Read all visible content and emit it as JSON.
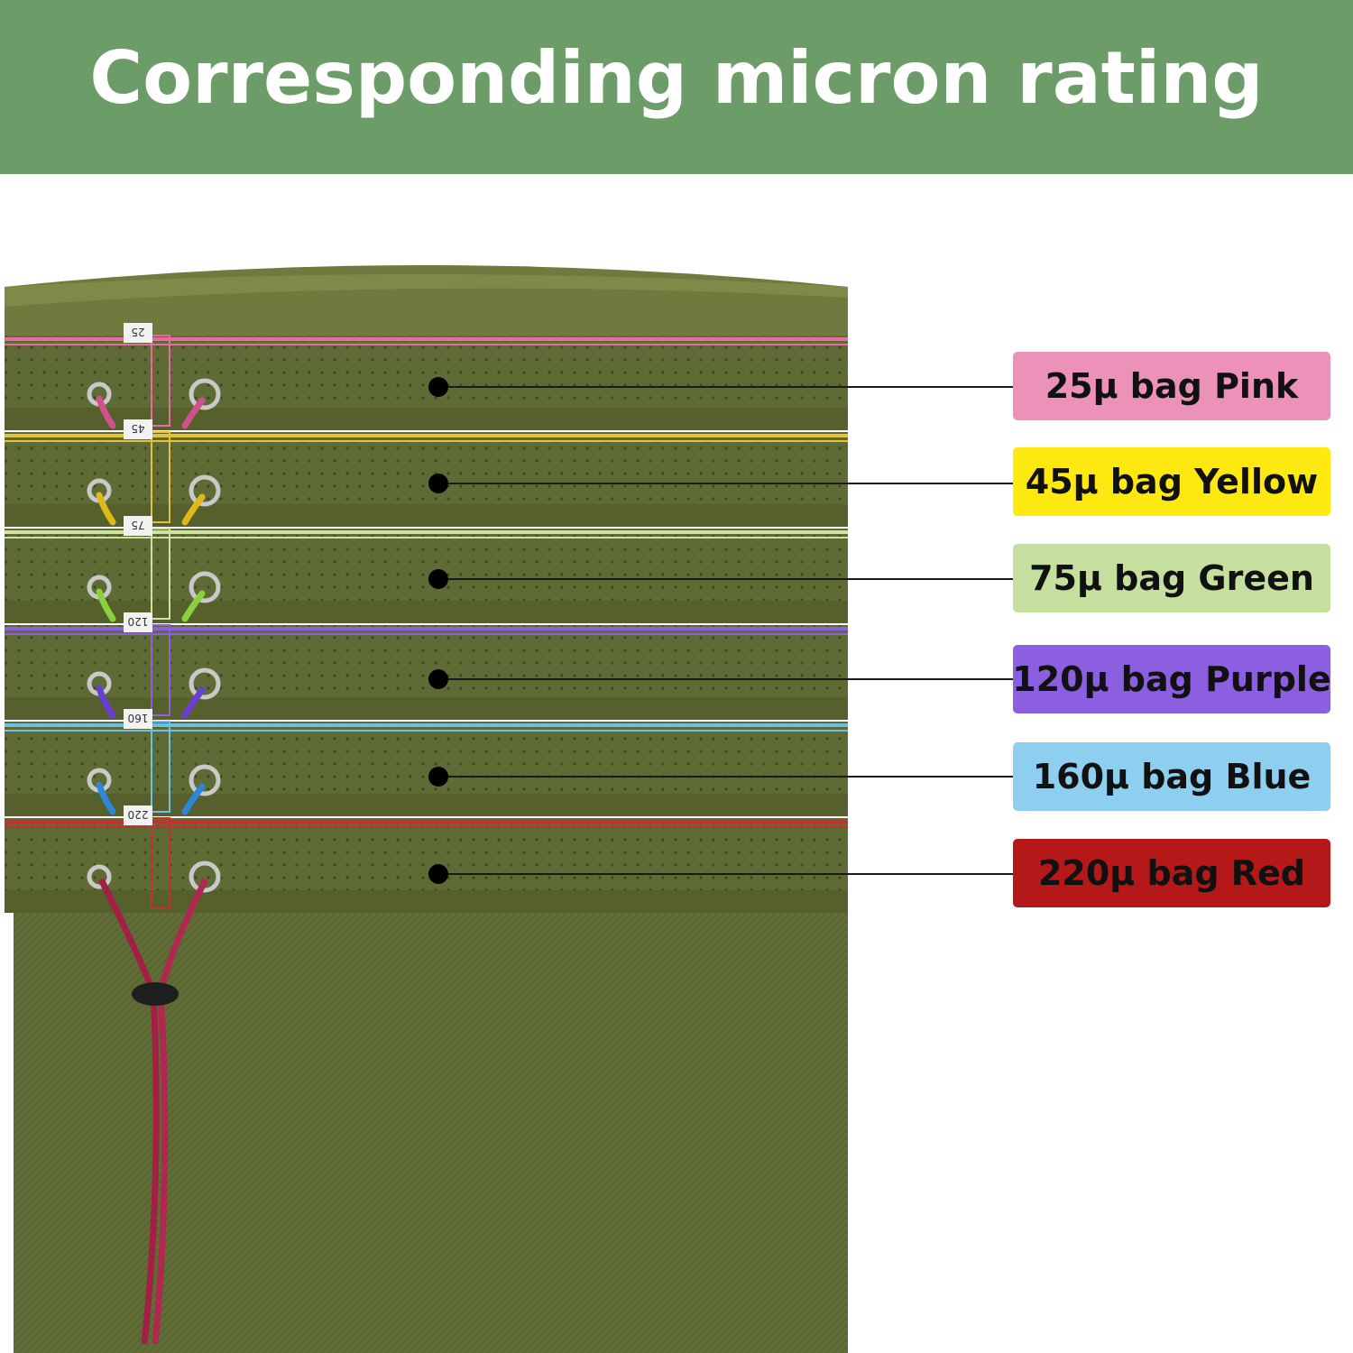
{
  "title": "Corresponding micron rating",
  "bags": [
    {
      "micron": "25",
      "label": "25µ bag Pink",
      "color": "#ec92b8",
      "thread": "#e86aa0",
      "rope": "#d0508c"
    },
    {
      "micron": "45",
      "label": "45µ bag Yellow",
      "color": "#fde910",
      "thread": "#e6c23a",
      "rope": "#e0b81a"
    },
    {
      "micron": "75",
      "label": "75µ bag Green",
      "color": "#c5e09e",
      "thread": "#cfe3a0",
      "rope": "#8ad23c"
    },
    {
      "micron": "120",
      "label": "120µ bag Purple",
      "color": "#8b5fdf",
      "thread": "#8e5fe0",
      "rope": "#6a3ed0"
    },
    {
      "micron": "160",
      "label": "160µ bag Blue",
      "color": "#8ecff0",
      "thread": "#6cc0e8",
      "rope": "#2f86d8"
    },
    {
      "micron": "220",
      "label": "220µ bag Red",
      "color": "#b51818",
      "thread": "#c83030",
      "rope": "#a01c3c"
    }
  ],
  "colors": {
    "header": "#6c9d69",
    "fabric": "#636f37",
    "fabric_dark": "#4f5a2a"
  }
}
